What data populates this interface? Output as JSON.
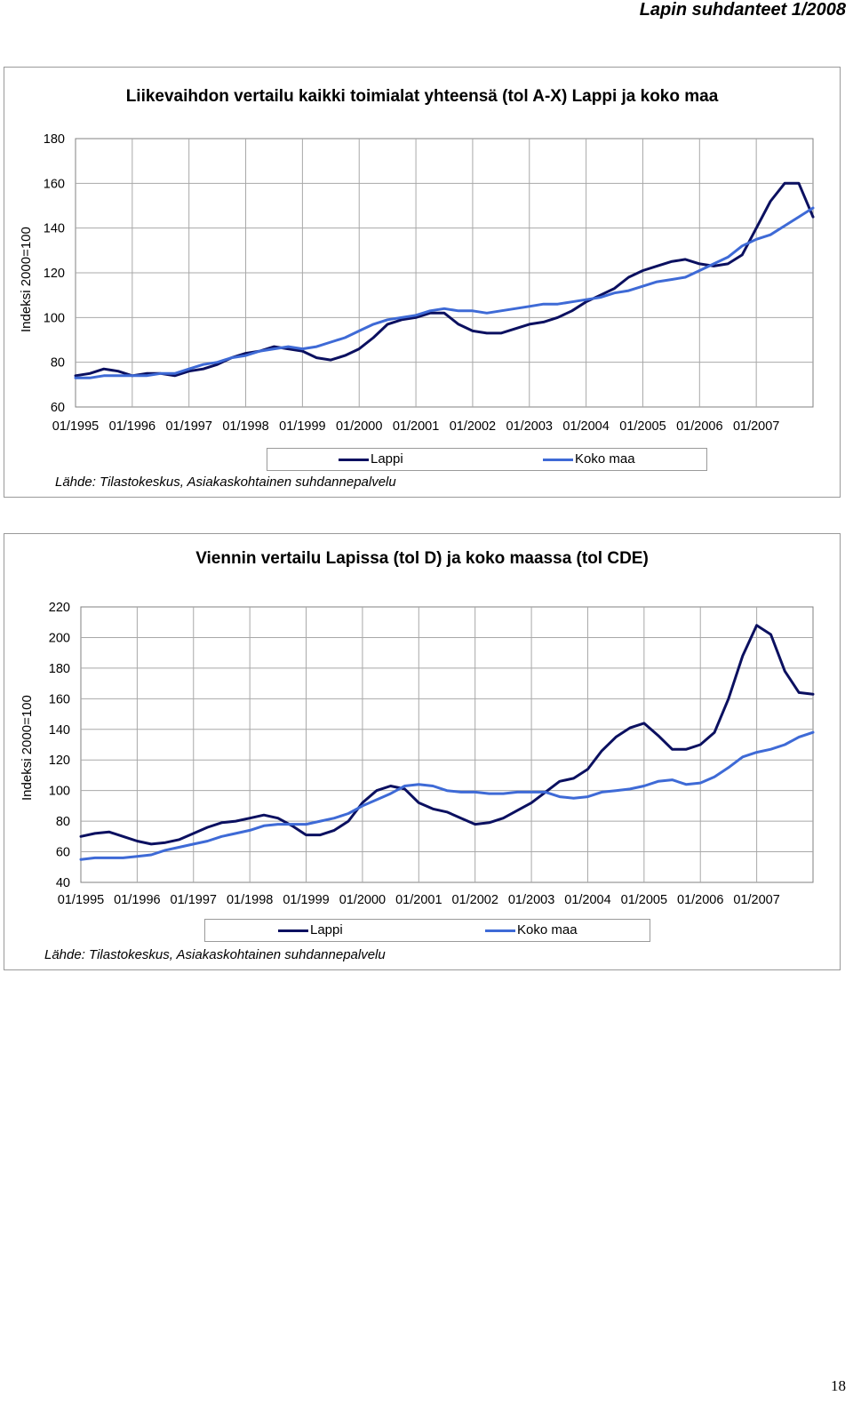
{
  "header": {
    "title": "Lapin suhdanteet 1/2008"
  },
  "page_number": "18",
  "colors": {
    "lappi": "#0b1060",
    "koko_maa": "#3e6ad6",
    "grid": "#a8a8a8"
  },
  "chart_data": [
    {
      "type": "line",
      "title": "Liikevaihdon vertailu kaikki toimialat yhteensä (tol A-X) Lappi ja koko maa",
      "ylabel": "Indeksi 2000=100",
      "source": "Lähde: Tilastokeskus, Asiakaskohtainen suhdannepalvelu",
      "ylim": [
        60,
        180
      ],
      "yticks": [
        "60",
        "80",
        "100",
        "120",
        "140",
        "160",
        "180"
      ],
      "categories": [
        "01/1995",
        "01/1996",
        "01/1997",
        "01/1998",
        "01/1999",
        "01/2000",
        "01/2001",
        "01/2002",
        "01/2003",
        "01/2004",
        "01/2005",
        "01/2006",
        "01/2007"
      ],
      "x_start": 1995.0,
      "x_end": 2008.0,
      "grid": true,
      "legend_position": "bottom",
      "series": [
        {
          "name": "Lappi",
          "color_key": "lappi",
          "x": [
            1995.0,
            1995.25,
            1995.5,
            1995.75,
            1996.0,
            1996.25,
            1996.5,
            1996.75,
            1997.0,
            1997.25,
            1997.5,
            1997.75,
            1998.0,
            1998.25,
            1998.5,
            1998.75,
            1999.0,
            1999.25,
            1999.5,
            1999.75,
            2000.0,
            2000.25,
            2000.5,
            2000.75,
            2001.0,
            2001.25,
            2001.5,
            2001.75,
            2002.0,
            2002.25,
            2002.5,
            2002.75,
            2003.0,
            2003.25,
            2003.5,
            2003.75,
            2004.0,
            2004.25,
            2004.5,
            2004.75,
            2005.0,
            2005.25,
            2005.5,
            2005.75,
            2006.0,
            2006.25,
            2006.5,
            2006.75,
            2007.0,
            2007.25,
            2007.5,
            2007.75,
            2008.0
          ],
          "values": [
            74,
            75,
            77,
            76,
            74,
            75,
            75,
            74,
            76,
            77,
            79,
            82,
            84,
            85,
            87,
            86,
            85,
            82,
            81,
            83,
            86,
            91,
            97,
            99,
            100,
            102,
            102,
            97,
            94,
            93,
            93,
            95,
            97,
            98,
            100,
            103,
            107,
            110,
            113,
            118,
            121,
            123,
            125,
            126,
            124,
            123,
            124,
            128,
            140,
            152,
            160,
            160,
            145
          ]
        },
        {
          "name": "Koko maa",
          "color_key": "koko_maa",
          "x": [
            1995.0,
            1995.25,
            1995.5,
            1995.75,
            1996.0,
            1996.25,
            1996.5,
            1996.75,
            1997.0,
            1997.25,
            1997.5,
            1997.75,
            1998.0,
            1998.25,
            1998.5,
            1998.75,
            1999.0,
            1999.25,
            1999.5,
            1999.75,
            2000.0,
            2000.25,
            2000.5,
            2000.75,
            2001.0,
            2001.25,
            2001.5,
            2001.75,
            2002.0,
            2002.25,
            2002.5,
            2002.75,
            2003.0,
            2003.25,
            2003.5,
            2003.75,
            2004.0,
            2004.25,
            2004.5,
            2004.75,
            2005.0,
            2005.25,
            2005.5,
            2005.75,
            2006.0,
            2006.25,
            2006.5,
            2006.75,
            2007.0,
            2007.25,
            2007.5,
            2007.75,
            2008.0
          ],
          "values": [
            73,
            73,
            74,
            74,
            74,
            74,
            75,
            75,
            77,
            79,
            80,
            82,
            83,
            85,
            86,
            87,
            86,
            87,
            89,
            91,
            94,
            97,
            99,
            100,
            101,
            103,
            104,
            103,
            103,
            102,
            103,
            104,
            105,
            106,
            106,
            107,
            108,
            109,
            111,
            112,
            114,
            116,
            117,
            118,
            121,
            124,
            127,
            132,
            135,
            137,
            141,
            145,
            149
          ]
        }
      ]
    },
    {
      "type": "line",
      "title": "Viennin vertailu Lapissa (tol D) ja koko maassa (tol CDE)",
      "ylabel": "Indeksi 2000=100",
      "source": "Lähde: Tilastokeskus, Asiakaskohtainen suhdannepalvelu",
      "ylim": [
        40,
        220
      ],
      "yticks": [
        "40",
        "60",
        "80",
        "100",
        "120",
        "140",
        "160",
        "180",
        "200",
        "220"
      ],
      "categories": [
        "01/1995",
        "01/1996",
        "01/1997",
        "01/1998",
        "01/1999",
        "01/2000",
        "01/2001",
        "01/2002",
        "01/2003",
        "01/2004",
        "01/2005",
        "01/2006",
        "01/2007"
      ],
      "x_start": 1995.0,
      "x_end": 2008.0,
      "grid": true,
      "legend_position": "bottom",
      "series": [
        {
          "name": "Lappi",
          "color_key": "lappi",
          "x": [
            1995.0,
            1995.25,
            1995.5,
            1995.75,
            1996.0,
            1996.25,
            1996.5,
            1996.75,
            1997.0,
            1997.25,
            1997.5,
            1997.75,
            1998.0,
            1998.25,
            1998.5,
            1998.75,
            1999.0,
            1999.25,
            1999.5,
            1999.75,
            2000.0,
            2000.25,
            2000.5,
            2000.75,
            2001.0,
            2001.25,
            2001.5,
            2001.75,
            2002.0,
            2002.25,
            2002.5,
            2002.75,
            2003.0,
            2003.25,
            2003.5,
            2003.75,
            2004.0,
            2004.25,
            2004.5,
            2004.75,
            2005.0,
            2005.25,
            2005.5,
            2005.75,
            2006.0,
            2006.25,
            2006.5,
            2006.75,
            2007.0,
            2007.25,
            2007.5,
            2007.75,
            2008.0
          ],
          "values": [
            70,
            72,
            73,
            70,
            67,
            65,
            66,
            68,
            72,
            76,
            79,
            80,
            82,
            84,
            82,
            77,
            71,
            71,
            74,
            80,
            92,
            100,
            103,
            101,
            92,
            88,
            86,
            82,
            78,
            79,
            82,
            87,
            92,
            99,
            106,
            108,
            114,
            126,
            135,
            141,
            144,
            136,
            127,
            127,
            130,
            138,
            160,
            188,
            208,
            202,
            178,
            164,
            163
          ]
        },
        {
          "name": "Koko maa",
          "color_key": "koko_maa",
          "x": [
            1995.0,
            1995.25,
            1995.5,
            1995.75,
            1996.0,
            1996.25,
            1996.5,
            1996.75,
            1997.0,
            1997.25,
            1997.5,
            1997.75,
            1998.0,
            1998.25,
            1998.5,
            1998.75,
            1999.0,
            1999.25,
            1999.5,
            1999.75,
            2000.0,
            2000.25,
            2000.5,
            2000.75,
            2001.0,
            2001.25,
            2001.5,
            2001.75,
            2002.0,
            2002.25,
            2002.5,
            2002.75,
            2003.0,
            2003.25,
            2003.5,
            2003.75,
            2004.0,
            2004.25,
            2004.5,
            2004.75,
            2005.0,
            2005.25,
            2005.5,
            2005.75,
            2006.0,
            2006.25,
            2006.5,
            2006.75,
            2007.0,
            2007.25,
            2007.5,
            2007.75,
            2008.0
          ],
          "values": [
            55,
            56,
            56,
            56,
            57,
            58,
            61,
            63,
            65,
            67,
            70,
            72,
            74,
            77,
            78,
            78,
            78,
            80,
            82,
            85,
            90,
            94,
            98,
            103,
            104,
            103,
            100,
            99,
            99,
            98,
            98,
            99,
            99,
            99,
            96,
            95,
            96,
            99,
            100,
            101,
            103,
            106,
            107,
            104,
            105,
            109,
            115,
            122,
            125,
            127,
            130,
            135,
            138
          ]
        }
      ]
    }
  ]
}
